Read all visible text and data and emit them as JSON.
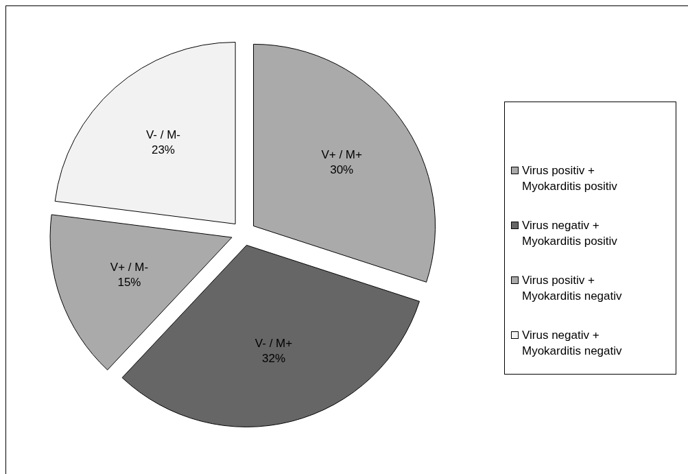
{
  "chart_data": {
    "type": "pie",
    "categories": [
      "Virus positiv + Myokarditis positiv",
      "Virus negativ + Myokarditis positiv",
      "Virus positiv + Myokarditis negativ",
      "Virus negativ + Myokarditis negativ"
    ],
    "values": [
      30,
      32,
      15,
      23
    ],
    "colors": [
      "#aaaaaa",
      "#666666",
      "#aaaaaa",
      "#f2f2f2"
    ],
    "value_labels": [
      "V+ / M+\n30%",
      "V- / M+\n32%",
      "V+ / M-\n15%",
      "V- / M-\n23%"
    ],
    "legend": "right"
  }
}
